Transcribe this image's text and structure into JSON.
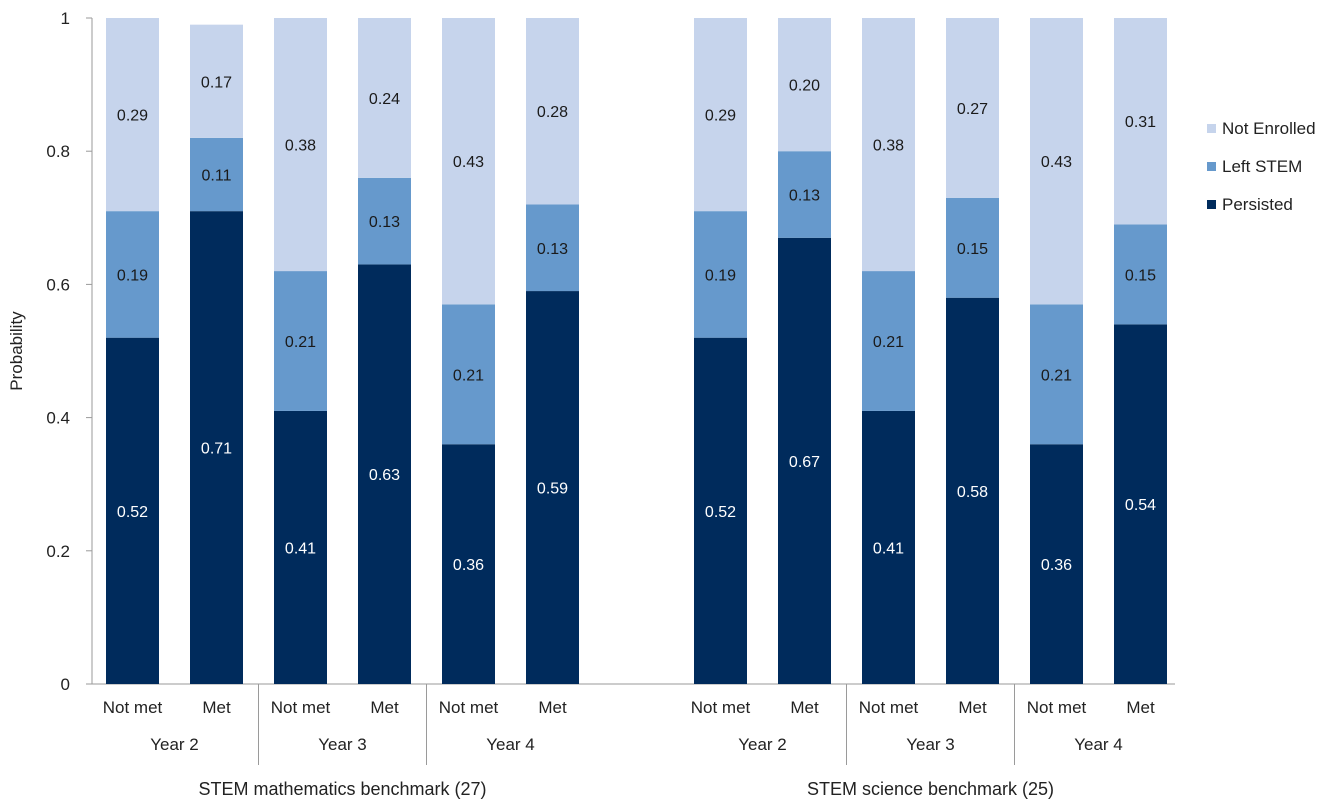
{
  "chart_data": {
    "type": "bar",
    "stacked": true,
    "ylabel": "Probability",
    "ylim": [
      0,
      1
    ],
    "yticks": [
      "0",
      "0.2",
      "0.4",
      "0.6",
      "0.8",
      "1"
    ],
    "yticks_values": [
      0,
      0.2,
      0.4,
      0.6,
      0.8,
      1
    ],
    "series": [
      {
        "name": "Persisted",
        "color": "#002b5c"
      },
      {
        "name": "Left STEM",
        "color": "#6699cc"
      },
      {
        "name": "Not Enrolled",
        "color": "#c6d4ec"
      }
    ],
    "legend_order": [
      "Not Enrolled",
      "Left STEM",
      "Persisted"
    ],
    "legend_position": "right",
    "groups": [
      {
        "label": "STEM mathematics benchmark (27)",
        "years": [
          {
            "label": "Year 2",
            "bars": [
              {
                "label": "Not met",
                "values": [
                  0.52,
                  0.19,
                  0.29
                ]
              },
              {
                "label": "Met",
                "values": [
                  0.71,
                  0.11,
                  0.17
                ]
              }
            ]
          },
          {
            "label": "Year 3",
            "bars": [
              {
                "label": "Not met",
                "values": [
                  0.41,
                  0.21,
                  0.38
                ]
              },
              {
                "label": "Met",
                "values": [
                  0.63,
                  0.13,
                  0.24
                ]
              }
            ]
          },
          {
            "label": "Year 4",
            "bars": [
              {
                "label": "Not met",
                "values": [
                  0.36,
                  0.21,
                  0.43
                ]
              },
              {
                "label": "Met",
                "values": [
                  0.59,
                  0.13,
                  0.28
                ]
              }
            ]
          }
        ]
      },
      {
        "label": "STEM science benchmark (25)",
        "years": [
          {
            "label": "Year 2",
            "bars": [
              {
                "label": "Not met",
                "values": [
                  0.52,
                  0.19,
                  0.29
                ]
              },
              {
                "label": "Met",
                "values": [
                  0.67,
                  0.13,
                  0.2
                ]
              }
            ]
          },
          {
            "label": "Year 3",
            "bars": [
              {
                "label": "Not met",
                "values": [
                  0.41,
                  0.21,
                  0.38
                ]
              },
              {
                "label": "Met",
                "values": [
                  0.58,
                  0.15,
                  0.27
                ]
              }
            ]
          },
          {
            "label": "Year 4",
            "bars": [
              {
                "label": "Not met",
                "values": [
                  0.36,
                  0.21,
                  0.43
                ]
              },
              {
                "label": "Met",
                "values": [
                  0.54,
                  0.15,
                  0.31
                ]
              }
            ]
          }
        ]
      }
    ]
  }
}
